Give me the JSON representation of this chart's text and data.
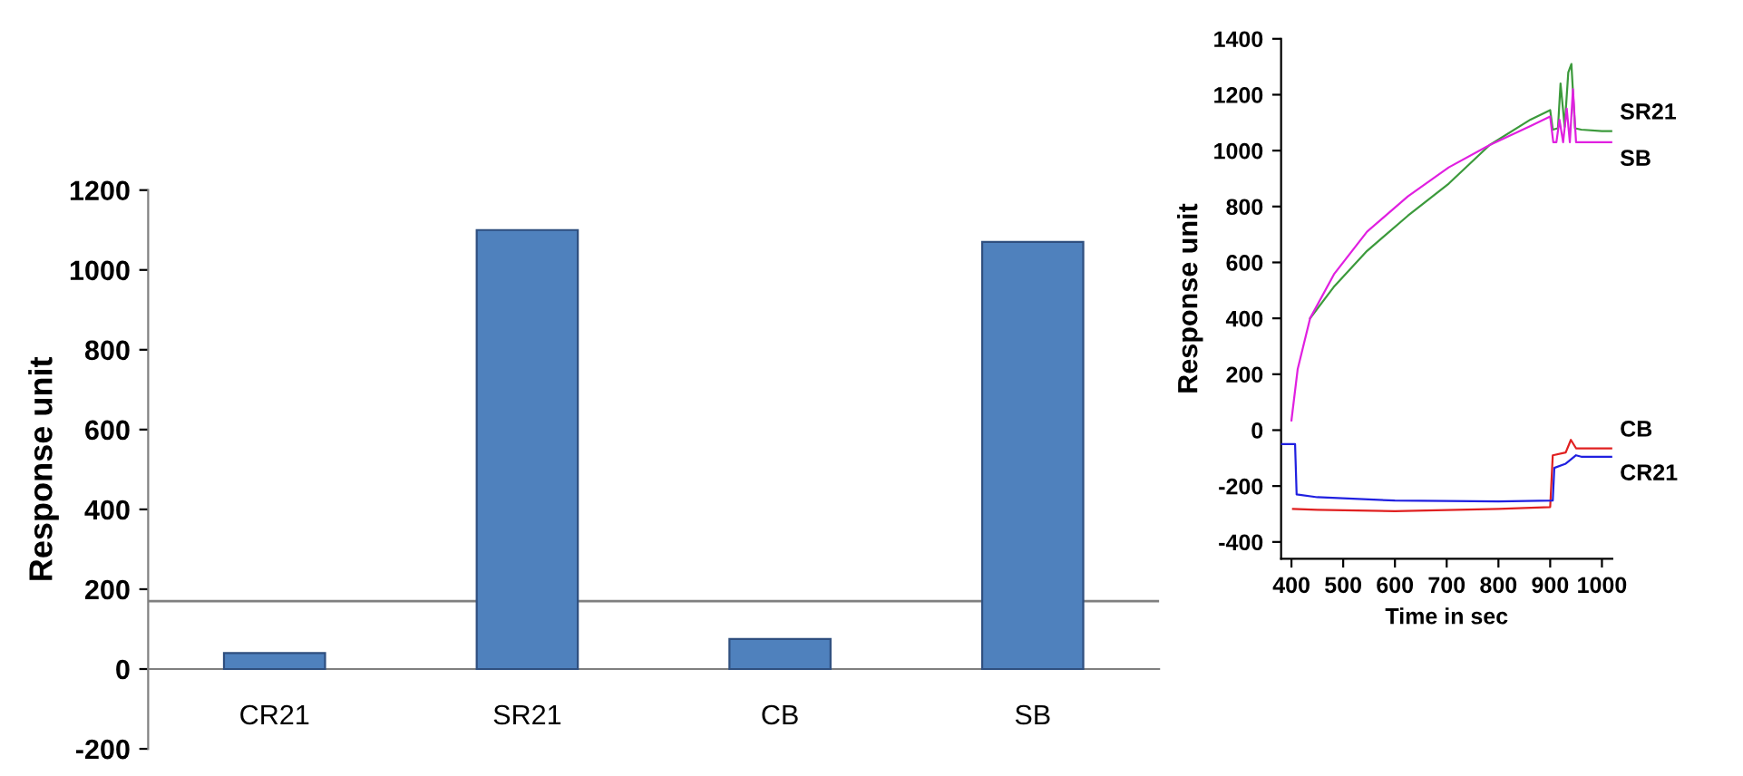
{
  "chart_data": [
    {
      "type": "bar",
      "ylabel": "Response unit",
      "categories": [
        "CR21",
        "SR21",
        "CB",
        "SB"
      ],
      "values": [
        40,
        1100,
        75,
        1070
      ],
      "color": "#4f81bd",
      "ylim": [
        -200,
        1200
      ],
      "yticks": [
        -200,
        0,
        200,
        400,
        600,
        800,
        1000,
        1200
      ],
      "ref_lines": [
        {
          "axis": "y",
          "value": 170,
          "color": "#808080"
        }
      ],
      "grid": false
    },
    {
      "type": "line",
      "xlabel": "Time in sec",
      "ylabel": "Response unit",
      "xlim": [
        380,
        1020
      ],
      "ylim": [
        -460,
        1400
      ],
      "xticks": [
        400,
        500,
        600,
        700,
        800,
        900,
        1000
      ],
      "yticks": [
        -400,
        -200,
        0,
        200,
        400,
        600,
        800,
        1000,
        1200,
        1400
      ],
      "grid": false,
      "legend": false,
      "marker": "none",
      "line_style": "solid",
      "series": [
        {
          "name": "SR21",
          "color": "#3c9a3c",
          "x": [
            436,
            483,
            546,
            625,
            704,
            783,
            862,
            900,
            905,
            915,
            920,
            928,
            935,
            941,
            948,
            960,
            1000,
            1020
          ],
          "values": [
            400,
            515,
            641,
            767,
            882,
            1020,
            1111,
            1145,
            1075,
            1080,
            1240,
            1085,
            1280,
            1310,
            1080,
            1075,
            1070,
            1070
          ]
        },
        {
          "name": "SB",
          "color": "#e020e0",
          "x": [
            400,
            412,
            436,
            483,
            546,
            625,
            704,
            783,
            862,
            900,
            906,
            912,
            918,
            925,
            932,
            938,
            944,
            950,
            1000,
            1020
          ],
          "values": [
            35,
            218,
            400,
            560,
            710,
            836,
            940,
            1020,
            1088,
            1122,
            1030,
            1030,
            1110,
            1030,
            1150,
            1030,
            1220,
            1030,
            1030,
            1030
          ]
        },
        {
          "name": "CB",
          "color": "#e02020",
          "x": [
            403,
            450,
            600,
            800,
            900,
            905,
            930,
            940,
            950,
            960,
            1000,
            1020
          ],
          "values": [
            -282,
            -285,
            -290,
            -282,
            -275,
            -90,
            -80,
            -35,
            -65,
            -65,
            -65,
            -65
          ]
        },
        {
          "name": "CR21",
          "color": "#2020e0",
          "x": [
            380,
            407,
            410,
            450,
            600,
            800,
            905,
            908,
            930,
            950,
            960,
            1000,
            1020
          ],
          "values": [
            -50,
            -50,
            -230,
            -240,
            -252,
            -255,
            -252,
            -135,
            -120,
            -90,
            -95,
            -95,
            -95
          ]
        }
      ]
    }
  ]
}
